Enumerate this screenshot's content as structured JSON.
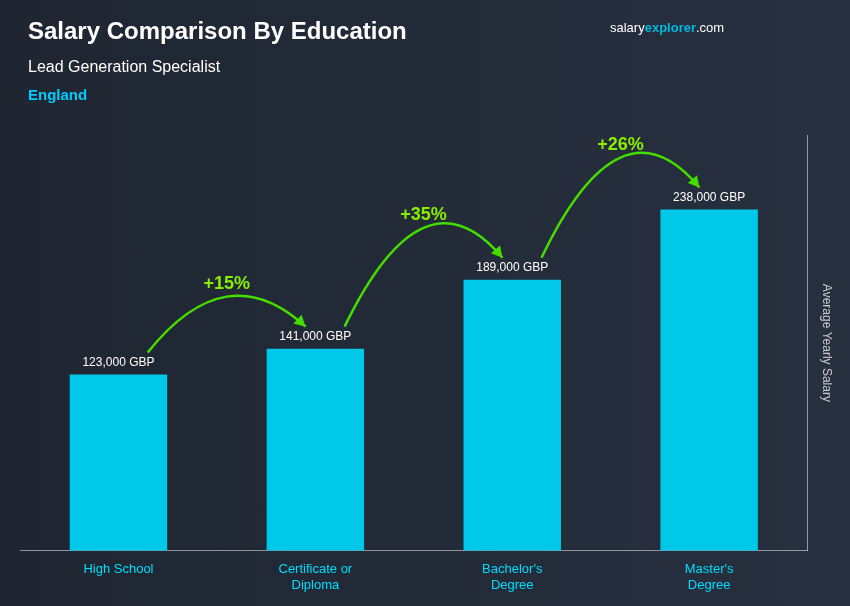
{
  "chart_data": {
    "type": "bar",
    "title": "Salary Comparison By Education",
    "subtitle": "Lead Generation Specialist",
    "location": "England",
    "watermark": [
      "salary",
      "explorer",
      ".com"
    ],
    "ylabel": "Average Yearly Salary",
    "categories": [
      "High School",
      "Certificate or\nDiploma",
      "Bachelor's\nDegree",
      "Master's\nDegree"
    ],
    "values": [
      123000,
      141000,
      189000,
      238000
    ],
    "value_labels": [
      "123,000 GBP",
      "141,000 GBP",
      "189,000 GBP",
      "238,000 GBP"
    ],
    "data_labels": true,
    "color": "#00c8e8",
    "annotations": [
      "+15%",
      "+35%",
      "+26%"
    ],
    "ylim": [
      0,
      290000
    ],
    "tick_labels": "x",
    "grid": false
  }
}
